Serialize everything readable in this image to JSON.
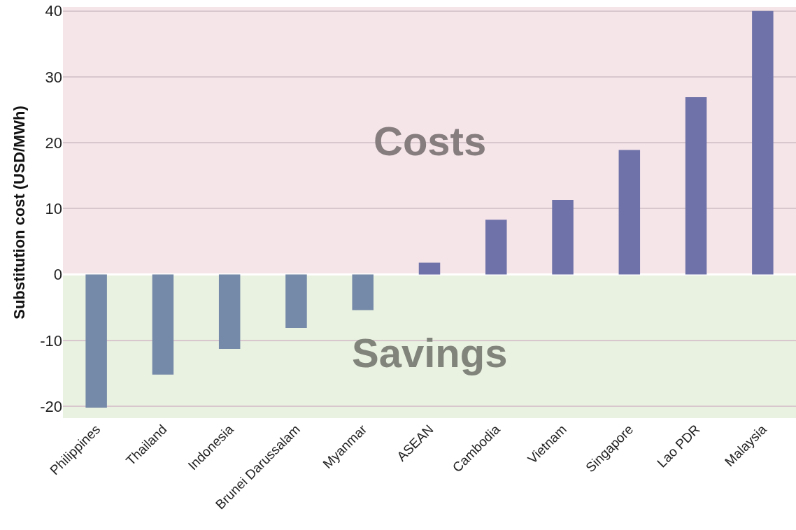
{
  "chart_data": {
    "type": "bar",
    "ylabel": "Substitution cost (USD/MWh)",
    "categories": [
      "Philippines",
      "Thailand",
      "Indonesia",
      "Brunei Darussalam",
      "Myanmar",
      "ASEAN",
      "Cambodia",
      "Vietnam",
      "Singapore",
      "Lao PDR",
      "Malaysia"
    ],
    "values": [
      -20.2,
      -15.2,
      -11.3,
      -8.1,
      -5.4,
      1.8,
      8.3,
      11.3,
      18.9,
      26.9,
      40
    ],
    "colors": [
      "#7589a8",
      "#7589a8",
      "#7589a8",
      "#7589a8",
      "#7589a8",
      "#6e72a8",
      "#6e72a8",
      "#6e72a8",
      "#6e72a8",
      "#6e72a8",
      "#6e72a8"
    ],
    "ylim": [
      -21.8,
      40.6
    ],
    "yticks": [
      -20,
      -10,
      0,
      10,
      20,
      30,
      40
    ],
    "grid": "y",
    "bands": [
      {
        "axis": "y",
        "from": 0,
        "to": 40.6,
        "label": "Costs",
        "color": "#f5e4e8"
      },
      {
        "axis": "y",
        "from": -21.8,
        "to": 0,
        "label": "Savings",
        "color": "#e9f1e0"
      }
    ]
  }
}
